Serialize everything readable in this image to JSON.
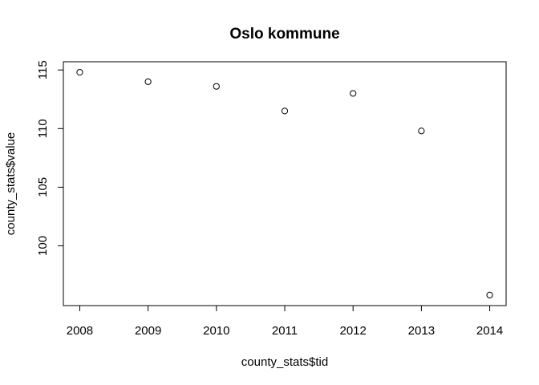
{
  "chart_data": {
    "type": "scatter",
    "title": "Oslo kommune",
    "xlabel": "county_stats$tid",
    "ylabel": "county_stats$value",
    "x": [
      2008,
      2009,
      2010,
      2011,
      2012,
      2013,
      2014
    ],
    "y": [
      114.8,
      114.0,
      113.6,
      111.5,
      113.0,
      109.8,
      95.8
    ],
    "xticks": [
      2008,
      2009,
      2010,
      2011,
      2012,
      2013,
      2014
    ],
    "yticks": [
      100,
      105,
      110,
      115
    ],
    "xlim": [
      2007.76,
      2014.24
    ],
    "ylim": [
      94.9,
      115.7
    ],
    "grid": false,
    "marker": "open-circle"
  }
}
